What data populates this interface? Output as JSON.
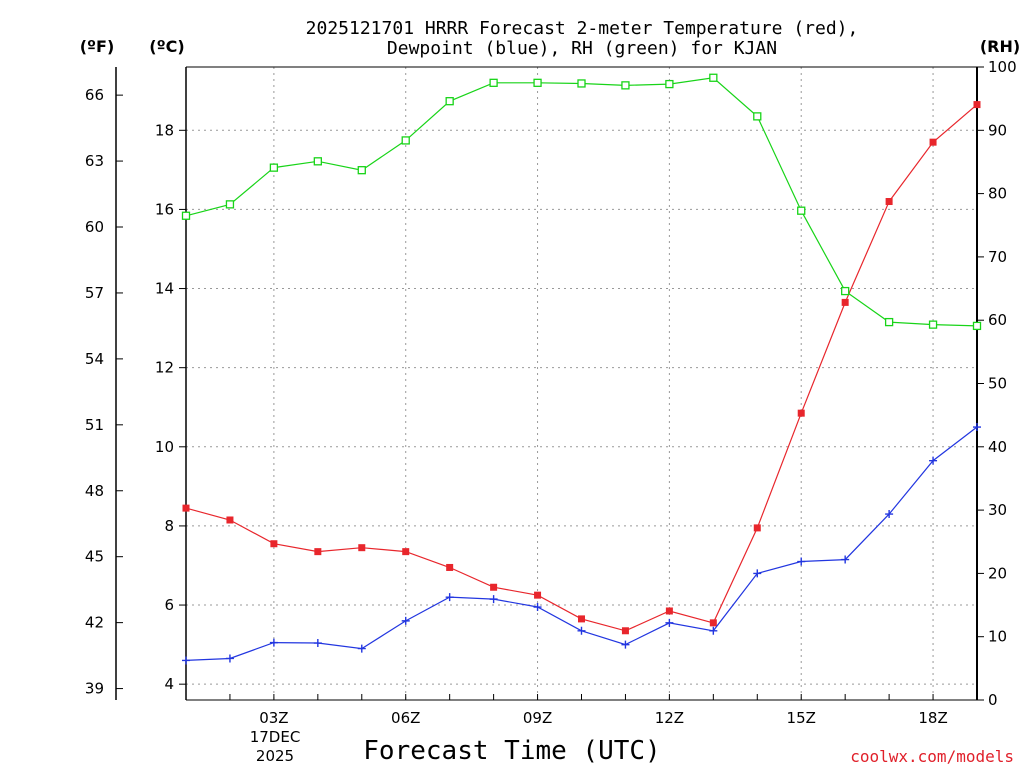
{
  "chart_data": {
    "type": "line",
    "title_line1": "2025121701 HRRR Forecast 2-meter Temperature (red),",
    "title_line2": "Dewpoint (blue), RH (green) for KJAN",
    "xlabel": "Forecast Time (UTC)",
    "credit": "coolwx.com/models",
    "unit_left_f": "(ºF)",
    "unit_left_c": "(ºC)",
    "unit_right": "(RH)",
    "date_label": [
      "17DEC",
      "2025"
    ],
    "x_hours": [
      1,
      2,
      3,
      4,
      5,
      6,
      7,
      8,
      9,
      10,
      11,
      12,
      13,
      14,
      15,
      16,
      17,
      18,
      19
    ],
    "x_range": [
      1,
      19
    ],
    "x_ticks": [
      {
        "hour": 3,
        "label": "03Z"
      },
      {
        "hour": 6,
        "label": "06Z"
      },
      {
        "hour": 9,
        "label": "09Z"
      },
      {
        "hour": 12,
        "label": "12Z"
      },
      {
        "hour": 15,
        "label": "15Z"
      },
      {
        "hour": 18,
        "label": "18Z"
      }
    ],
    "celsius_range": [
      3.6,
      19.6
    ],
    "celsius_ticks": [
      "4",
      "6",
      "8",
      "10",
      "12",
      "14",
      "16",
      "18"
    ],
    "fahrenheit_ticks": [
      "39",
      "42",
      "45",
      "48",
      "51",
      "54",
      "57",
      "60",
      "63",
      "66"
    ],
    "rh_range": [
      0,
      100
    ],
    "rh_ticks": [
      "0",
      "10",
      "20",
      "30",
      "40",
      "50",
      "60",
      "70",
      "80",
      "90",
      "100"
    ],
    "series": [
      {
        "name": "Temperature",
        "unit": "C",
        "color": "#e8262c",
        "values": [
          8.45,
          8.15,
          7.55,
          7.35,
          7.45,
          7.35,
          6.95,
          6.45,
          6.25,
          5.65,
          5.35,
          5.85,
          5.55,
          7.95,
          10.85,
          13.65,
          16.2,
          17.7,
          18.65
        ]
      },
      {
        "name": "Dewpoint",
        "unit": "C",
        "color": "#2236e0",
        "values": [
          4.6,
          4.65,
          5.05,
          5.04,
          4.9,
          5.6,
          6.2,
          6.15,
          5.95,
          5.35,
          5.0,
          5.55,
          5.35,
          6.8,
          7.1,
          7.15,
          8.3,
          9.65,
          10.5
        ]
      },
      {
        "name": "RH",
        "unit": "%",
        "color": "#18d418",
        "values": [
          76.5,
          78.3,
          84.1,
          85.1,
          83.7,
          88.4,
          94.6,
          97.5,
          97.5,
          97.4,
          97.1,
          97.3,
          98.3,
          92.2,
          77.3,
          64.6,
          59.7,
          59.3,
          59.1
        ]
      }
    ]
  }
}
